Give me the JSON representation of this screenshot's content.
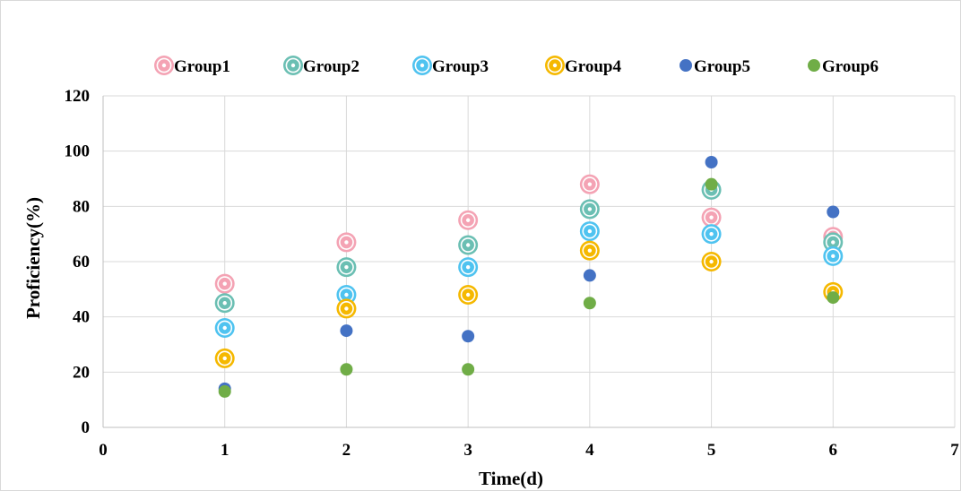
{
  "chart_data": {
    "type": "scatter",
    "title": "",
    "xlabel": "Time(d)",
    "ylabel": "Proficiency(%)",
    "xlim": [
      0,
      7
    ],
    "ylim": [
      0,
      120
    ],
    "x_ticks": [
      "0",
      "1",
      "2",
      "3",
      "4",
      "5",
      "6",
      "7"
    ],
    "y_ticks": [
      "0",
      "20",
      "40",
      "60",
      "80",
      "100",
      "120"
    ],
    "grid": true,
    "legend_position": "top",
    "x": [
      1,
      2,
      3,
      4,
      5,
      6
    ],
    "series": [
      {
        "name": "Group1",
        "color": "#F4A3B4",
        "marker": "bullseye",
        "values": [
          52,
          67,
          75,
          88,
          76,
          69
        ]
      },
      {
        "name": "Group2",
        "color": "#6BBFB3",
        "marker": "bullseye",
        "values": [
          45,
          58,
          66,
          79,
          86,
          67
        ]
      },
      {
        "name": "Group3",
        "color": "#4FC3F0",
        "marker": "bullseye",
        "values": [
          36,
          48,
          58,
          71,
          70,
          62
        ]
      },
      {
        "name": "Group4",
        "color": "#F5B800",
        "marker": "bullseye",
        "values": [
          25,
          43,
          48,
          64,
          60,
          49
        ]
      },
      {
        "name": "Group5",
        "color": "#4472C4",
        "marker": "dot",
        "values": [
          14,
          35,
          33,
          55,
          96,
          78
        ]
      },
      {
        "name": "Group6",
        "color": "#70AD47",
        "marker": "dot",
        "values": [
          13,
          21,
          21,
          45,
          88,
          47
        ]
      }
    ]
  }
}
